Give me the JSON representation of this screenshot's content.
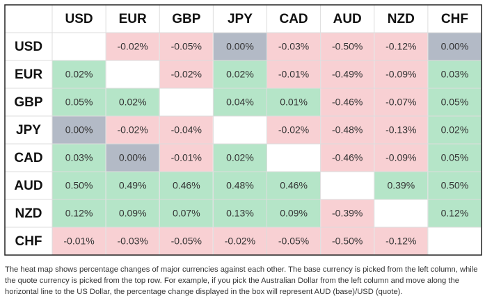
{
  "chart_data": {
    "type": "heatmap",
    "columns": [
      "USD",
      "EUR",
      "GBP",
      "JPY",
      "CAD",
      "AUD",
      "NZD",
      "CHF"
    ],
    "rows": [
      "USD",
      "EUR",
      "GBP",
      "JPY",
      "CAD",
      "AUD",
      "NZD",
      "CHF"
    ],
    "values": [
      [
        null,
        -0.02,
        -0.05,
        0.0,
        -0.03,
        -0.5,
        -0.12,
        0.0
      ],
      [
        0.02,
        null,
        -0.02,
        0.02,
        -0.01,
        -0.49,
        -0.09,
        0.03
      ],
      [
        0.05,
        0.02,
        null,
        0.04,
        0.01,
        -0.46,
        -0.07,
        0.05
      ],
      [
        0.0,
        -0.02,
        -0.04,
        null,
        -0.02,
        -0.48,
        -0.13,
        0.02
      ],
      [
        0.03,
        0.0,
        -0.01,
        0.02,
        null,
        -0.46,
        -0.09,
        0.05
      ],
      [
        0.5,
        0.49,
        0.46,
        0.48,
        0.46,
        null,
        0.39,
        0.5
      ],
      [
        0.12,
        0.09,
        0.07,
        0.13,
        0.09,
        -0.39,
        null,
        0.12
      ],
      [
        -0.01,
        -0.03,
        -0.05,
        -0.02,
        -0.05,
        -0.5,
        -0.12,
        null
      ]
    ],
    "value_labels": [
      [
        null,
        "-0.02%",
        "-0.05%",
        "0.00%",
        "-0.03%",
        "-0.50%",
        "-0.12%",
        "0.00%"
      ],
      [
        "0.02%",
        null,
        "-0.02%",
        "0.02%",
        "-0.01%",
        "-0.49%",
        "-0.09%",
        "0.03%"
      ],
      [
        "0.05%",
        "0.02%",
        null,
        "0.04%",
        "0.01%",
        "-0.46%",
        "-0.07%",
        "0.05%"
      ],
      [
        "0.00%",
        "-0.02%",
        "-0.04%",
        null,
        "-0.02%",
        "-0.48%",
        "-0.13%",
        "0.02%"
      ],
      [
        "0.03%",
        "0.00%",
        "-0.01%",
        "0.02%",
        null,
        "-0.46%",
        "-0.09%",
        "0.05%"
      ],
      [
        "0.50%",
        "0.49%",
        "0.46%",
        "0.48%",
        "0.46%",
        null,
        "0.39%",
        "0.50%"
      ],
      [
        "0.12%",
        "0.09%",
        "0.07%",
        "0.13%",
        "0.09%",
        "-0.39%",
        null,
        "0.12%"
      ],
      [
        "-0.01%",
        "-0.03%",
        "-0.05%",
        "-0.02%",
        "-0.05%",
        "-0.50%",
        "-0.12%",
        null
      ]
    ],
    "colors": {
      "positive": "#b5e5c8",
      "negative": "#f8d0d3",
      "zero": "#b3bac6",
      "empty": "#ffffff"
    },
    "caption": "The heat map shows percentage changes of major currencies against each other. The base currency is picked from the left column, while the quote currency is picked from the top row. For example, if you pick the Australian Dollar from the left column and move along the horizontal line to the US Dollar, the percentage change displayed in the box will represent AUD (base)/USD (quote)."
  }
}
